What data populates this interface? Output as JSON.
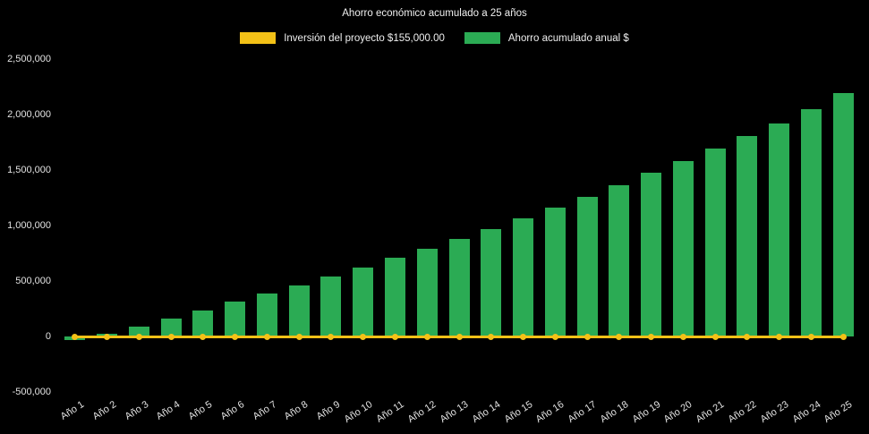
{
  "page": {
    "background": "#000000",
    "text_color": "#e8e8e8"
  },
  "chart_data": {
    "type": "bar",
    "title": "Ahorro económico acumulado a 25 años",
    "xlabel": "",
    "ylabel": "",
    "categories": [
      "Año 1",
      "Año 2",
      "Año 3",
      "Año 4",
      "Año 5",
      "Año 6",
      "Año 7",
      "Año 8",
      "Año 9",
      "Año 10",
      "Año 11",
      "Año 12",
      "Año 13",
      "Año 14",
      "Año 15",
      "Año 16",
      "Año 17",
      "Año 18",
      "Año 19",
      "Año 20",
      "Año 21",
      "Año 22",
      "Año 23",
      "Año 24",
      "Año 25"
    ],
    "series": [
      {
        "name": "Inversión del proyecto $155,000.00",
        "type": "line",
        "color": "#F3C117",
        "constant_value": 155000,
        "plotted_level": 0,
        "marker": "circle"
      },
      {
        "name": "Ahorro acumulado anual $",
        "type": "bar",
        "color": "#2BAB54",
        "values": [
          -35000,
          25000,
          90000,
          160000,
          235000,
          315000,
          390000,
          460000,
          540000,
          620000,
          710000,
          790000,
          880000,
          970000,
          1065000,
          1160000,
          1260000,
          1365000,
          1475000,
          1580000,
          1695000,
          1805000,
          1920000,
          2050000,
          2190000
        ]
      }
    ],
    "ylim": [
      -500000,
      2500000
    ],
    "ytick_step": 500000,
    "ytick_labels": [
      "2,500,000",
      "2,000,000",
      "1,500,000",
      "1,000,000",
      "500,000",
      "0",
      "-500,000"
    ],
    "grid": false,
    "legend_position": "top",
    "background": "#000000"
  }
}
